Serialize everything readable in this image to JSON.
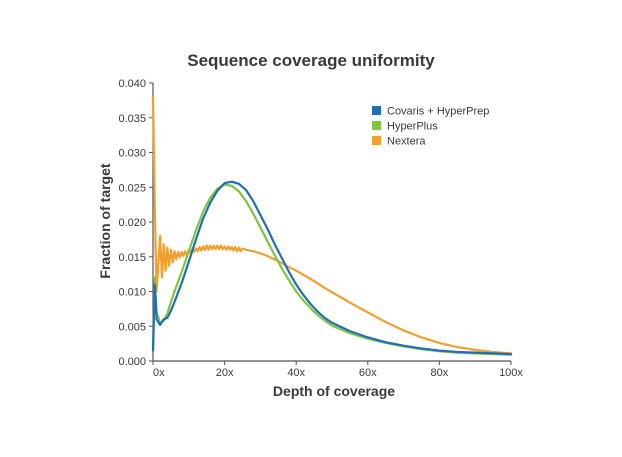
{
  "chart_data": {
    "type": "line",
    "title": "Sequence coverage uniformity",
    "xlabel": "Depth of coverage",
    "ylabel": "Fraction of target",
    "xlim": [
      0,
      100
    ],
    "ylim": [
      0,
      0.04
    ],
    "x_ticks": [
      0,
      20,
      40,
      60,
      80,
      100
    ],
    "x_tick_labels": [
      "0x",
      "20x",
      "40x",
      "60x",
      "80x",
      "100x"
    ],
    "y_ticks": [
      0,
      0.005,
      0.01,
      0.015,
      0.02,
      0.025,
      0.03,
      0.035,
      0.04
    ],
    "y_tick_labels": [
      "0.000",
      "0.005",
      "0.010",
      "0.015",
      "0.020",
      "0.025",
      "0.030",
      "0.035",
      "0.040"
    ],
    "legend_position": "top-right",
    "grid": false,
    "series": [
      {
        "name": "Covaris + HyperPrep",
        "color": "#1f6fb4",
        "x": [
          0,
          0.5,
          1,
          2,
          3,
          4,
          5,
          6,
          8,
          10,
          12,
          14,
          16,
          18,
          20,
          22,
          24,
          26,
          28,
          30,
          32,
          34,
          36,
          38,
          40,
          42,
          44,
          46,
          48,
          50,
          55,
          60,
          65,
          70,
          75,
          80,
          85,
          90,
          95,
          100
        ],
        "values": [
          0.0015,
          0.011,
          0.006,
          0.0052,
          0.006,
          0.0062,
          0.0072,
          0.0085,
          0.0112,
          0.0143,
          0.0175,
          0.0205,
          0.0228,
          0.0245,
          0.0256,
          0.0258,
          0.0255,
          0.0246,
          0.023,
          0.021,
          0.019,
          0.0168,
          0.0148,
          0.0128,
          0.011,
          0.0095,
          0.0082,
          0.0071,
          0.0062,
          0.0055,
          0.0043,
          0.0034,
          0.0027,
          0.0022,
          0.0018,
          0.0015,
          0.0013,
          0.0012,
          0.0011,
          0.001
        ]
      },
      {
        "name": "HyperPlus",
        "color": "#82c341",
        "x": [
          0,
          0.5,
          1,
          2,
          3,
          4,
          5,
          6,
          8,
          10,
          12,
          14,
          16,
          18,
          20,
          22,
          24,
          26,
          28,
          30,
          32,
          34,
          36,
          38,
          40,
          42,
          44,
          46,
          48,
          50,
          55,
          60,
          65,
          70,
          75,
          80,
          85,
          90,
          95,
          100
        ],
        "values": [
          0.0015,
          0.012,
          0.007,
          0.0055,
          0.0058,
          0.0068,
          0.0085,
          0.01,
          0.0128,
          0.0158,
          0.0188,
          0.0215,
          0.0235,
          0.0248,
          0.0254,
          0.0252,
          0.0244,
          0.023,
          0.0212,
          0.0192,
          0.0172,
          0.0152,
          0.0133,
          0.0116,
          0.01,
          0.0087,
          0.0076,
          0.0066,
          0.0058,
          0.0051,
          0.004,
          0.0032,
          0.0026,
          0.0021,
          0.0017,
          0.0014,
          0.0012,
          0.0011,
          0.001,
          0.0009
        ]
      },
      {
        "name": "Nextera",
        "color": "#f0a030",
        "x": [
          0,
          0.5,
          1,
          1.5,
          2,
          2.5,
          3,
          3.5,
          4,
          4.5,
          5,
          5.5,
          6,
          6.5,
          7,
          7.5,
          8,
          8.5,
          9,
          9.5,
          10,
          10.5,
          11,
          11.5,
          12,
          12.5,
          13,
          13.5,
          14,
          14.5,
          15,
          15.5,
          16,
          16.5,
          17,
          17.5,
          18,
          18.5,
          19,
          19.5,
          20,
          20.5,
          21,
          21.5,
          22,
          22.5,
          23,
          23.5,
          24,
          24.5,
          25,
          26,
          28,
          30,
          32,
          34,
          36,
          38,
          40,
          44,
          48,
          52,
          56,
          60,
          65,
          70,
          75,
          80,
          85,
          90,
          95,
          100
        ],
        "values": [
          0.038,
          0.022,
          0.01,
          0.014,
          0.018,
          0.012,
          0.0168,
          0.013,
          0.0163,
          0.0137,
          0.016,
          0.0142,
          0.0158,
          0.0146,
          0.0157,
          0.0149,
          0.0157,
          0.0151,
          0.0158,
          0.0153,
          0.0159,
          0.0155,
          0.0161,
          0.0157,
          0.0162,
          0.0158,
          0.0164,
          0.0159,
          0.0165,
          0.016,
          0.0166,
          0.016,
          0.0166,
          0.0161,
          0.0166,
          0.0161,
          0.0166,
          0.0161,
          0.0166,
          0.0161,
          0.0165,
          0.016,
          0.0165,
          0.016,
          0.0164,
          0.0159,
          0.0164,
          0.0158,
          0.0163,
          0.0158,
          0.0162,
          0.016,
          0.0158,
          0.0155,
          0.0151,
          0.0146,
          0.0141,
          0.0135,
          0.013,
          0.0118,
          0.0105,
          0.0093,
          0.0081,
          0.007,
          0.0056,
          0.0044,
          0.0034,
          0.0026,
          0.002,
          0.0016,
          0.0013,
          0.0011
        ]
      }
    ]
  }
}
